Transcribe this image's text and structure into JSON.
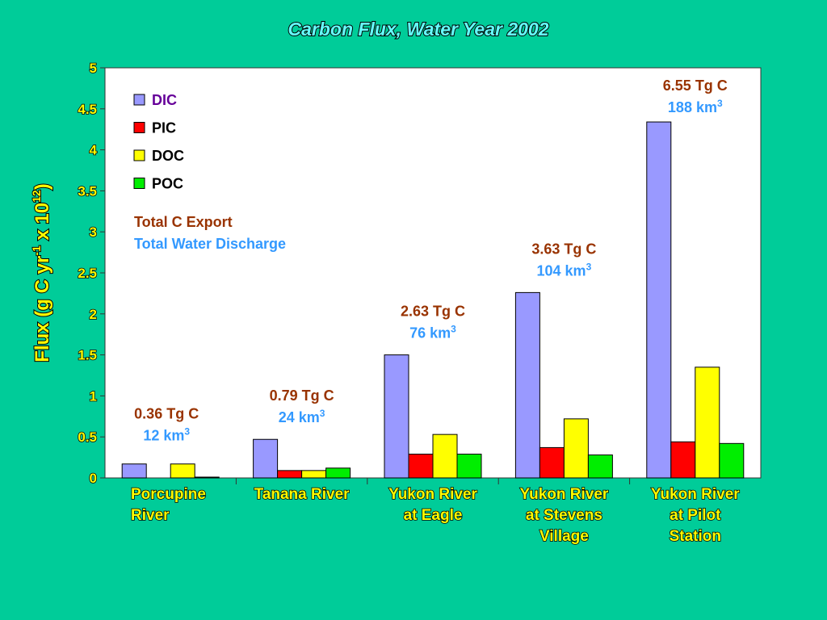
{
  "chart_data": {
    "type": "bar",
    "title": "Carbon Flux, Water Year 2002",
    "ylabel_main": "Flux (g C yr",
    "ylabel_sup1": "-1",
    "ylabel_mid": " x 10",
    "ylabel_sup2": "12",
    "ylabel_end": ")",
    "ylim": [
      0,
      5
    ],
    "yticks": [
      "0",
      "0.5",
      "1",
      "1.5",
      "2",
      "2.5",
      "3",
      "3.5",
      "4",
      "4.5",
      "5"
    ],
    "grid": false,
    "legend_position": "top-left",
    "categories": [
      [
        "Porcupine",
        "River"
      ],
      [
        "Tanana River"
      ],
      [
        "Yukon River",
        "at Eagle"
      ],
      [
        "Yukon River",
        "at Stevens",
        "Village"
      ],
      [
        "Yukon River",
        "at Pilot",
        "Station"
      ]
    ],
    "series": [
      {
        "name": "DIC",
        "color": "#9999ff",
        "values": [
          0.17,
          0.47,
          1.5,
          2.26,
          4.34
        ]
      },
      {
        "name": "PIC",
        "color": "#ff0000",
        "values": [
          0.0,
          0.09,
          0.29,
          0.37,
          0.44
        ]
      },
      {
        "name": "DOC",
        "color": "#ffff00",
        "values": [
          0.17,
          0.09,
          0.53,
          0.72,
          1.35
        ]
      },
      {
        "name": "POC",
        "color": "#00ee00",
        "values": [
          0.01,
          0.12,
          0.29,
          0.28,
          0.42
        ]
      }
    ],
    "annotations": [
      {
        "carbon": "0.36 Tg C",
        "water": "12 km",
        "water_sup": "3"
      },
      {
        "carbon": "0.79 Tg C",
        "water": "24 km",
        "water_sup": "3"
      },
      {
        "carbon": "2.63 Tg C",
        "water": "76 km",
        "water_sup": "3"
      },
      {
        "carbon": "3.63 Tg C",
        "water": "104 km",
        "water_sup": "3"
      },
      {
        "carbon": "6.55 Tg C",
        "water": "188 km",
        "water_sup": "3"
      }
    ],
    "key_total_c": "Total C Export",
    "key_total_water": "Total Water Discharge",
    "colors": {
      "background": "#00cc99",
      "plot_background": "#ffffff",
      "title": "#66ffff",
      "axis_text": "#ffff00",
      "category_text": "#ffff00",
      "carbon_text": "#993300",
      "water_text": "#3399ff",
      "dic_label": "#660099"
    }
  }
}
